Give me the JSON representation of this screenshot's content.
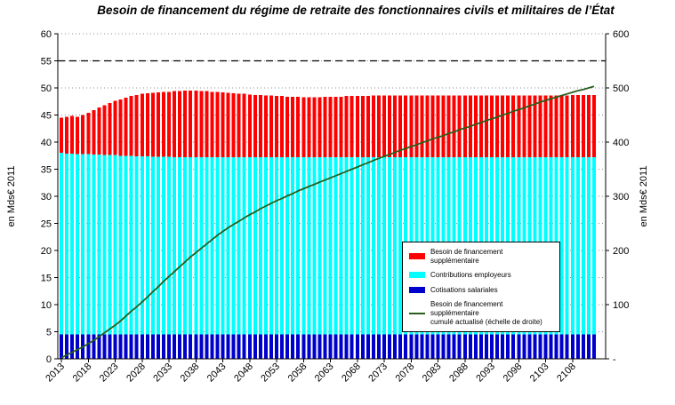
{
  "chart_data": {
    "type": "bar",
    "subtype": "stacked-bars-with-cumulative-line",
    "title": "Besoin de financement du régime de retraite des fonctionnaires civils et militaires de l’État",
    "left_axis_label": "en Mds€ 2011",
    "right_axis_label": "en Mds€ 2011",
    "left_axis": {
      "min": 0,
      "max": 60,
      "step": 5
    },
    "right_axis": {
      "min": 0,
      "max": 600,
      "step": 100,
      "zero_label": "-"
    },
    "grid": "dotted horizontal lines every 5 (left scale)",
    "legend_position": "inside-right",
    "start_year": 2013,
    "x_tick_years": [
      2013,
      2018,
      2023,
      2028,
      2033,
      2038,
      2043,
      2048,
      2053,
      2058,
      2063,
      2068,
      2073,
      2078,
      2083,
      2088,
      2093,
      2098,
      2103,
      2108
    ],
    "reference_line": {
      "value_right": 550,
      "style": "dashed",
      "color": "#000000"
    },
    "series": [
      {
        "name": "Cotisations salariales",
        "type": "bar",
        "axis": "left",
        "color": "#0000CC",
        "values": [
          4.5,
          4.5,
          4.5,
          4.5,
          4.5,
          4.5,
          4.5,
          4.5,
          4.5,
          4.5,
          4.5,
          4.5,
          4.5,
          4.5,
          4.5,
          4.5,
          4.5,
          4.5,
          4.5,
          4.5,
          4.5,
          4.5,
          4.5,
          4.5,
          4.5,
          4.5,
          4.5,
          4.5,
          4.5,
          4.5,
          4.5,
          4.5,
          4.5,
          4.5,
          4.5,
          4.5,
          4.5,
          4.5,
          4.5,
          4.5,
          4.5,
          4.5,
          4.5,
          4.5,
          4.5,
          4.5,
          4.5,
          4.5,
          4.5,
          4.5,
          4.5,
          4.5,
          4.5,
          4.5,
          4.5,
          4.5,
          4.5,
          4.5,
          4.5,
          4.5,
          4.5,
          4.5,
          4.5,
          4.5,
          4.5,
          4.5,
          4.5,
          4.5,
          4.5,
          4.5,
          4.5,
          4.5,
          4.5,
          4.5,
          4.5,
          4.5,
          4.5,
          4.5,
          4.5,
          4.5,
          4.5,
          4.5,
          4.5,
          4.5,
          4.5,
          4.5,
          4.5,
          4.5,
          4.5,
          4.5,
          4.5,
          4.5,
          4.5,
          4.5,
          4.5,
          4.5,
          4.5,
          4.5,
          4.5,
          4.5
        ]
      },
      {
        "name": "Contributions employeurs",
        "type": "bar",
        "axis": "left",
        "color": "#00FFFF",
        "values": [
          33.5,
          33.4,
          33.4,
          33.3,
          33.3,
          33.3,
          33.2,
          33.2,
          33.1,
          33.1,
          33.1,
          33.0,
          33.0,
          33.0,
          32.9,
          32.9,
          32.9,
          32.8,
          32.8,
          32.8,
          32.8,
          32.7,
          32.7,
          32.7,
          32.7,
          32.7,
          32.7,
          32.7,
          32.7,
          32.7,
          32.7,
          32.7,
          32.7,
          32.7,
          32.7,
          32.7,
          32.7,
          32.7,
          32.7,
          32.7,
          32.7,
          32.7,
          32.7,
          32.7,
          32.7,
          32.7,
          32.7,
          32.7,
          32.7,
          32.7,
          32.7,
          32.7,
          32.7,
          32.7,
          32.7,
          32.7,
          32.7,
          32.7,
          32.7,
          32.7,
          32.7,
          32.7,
          32.7,
          32.7,
          32.7,
          32.7,
          32.7,
          32.7,
          32.7,
          32.7,
          32.7,
          32.7,
          32.7,
          32.7,
          32.7,
          32.7,
          32.7,
          32.7,
          32.7,
          32.7,
          32.7,
          32.7,
          32.7,
          32.7,
          32.7,
          32.7,
          32.7,
          32.7,
          32.7,
          32.7,
          32.7,
          32.7,
          32.7,
          32.7,
          32.7,
          32.7,
          32.7,
          32.7,
          32.7,
          32.7
        ]
      },
      {
        "name": "Besoin de financement supplémentaire",
        "type": "bar",
        "axis": "left",
        "color": "#FF0000",
        "values": [
          6.5,
          6.8,
          6.9,
          6.9,
          7.2,
          7.6,
          8.2,
          8.7,
          9.2,
          9.6,
          10.0,
          10.4,
          10.7,
          11.0,
          11.3,
          11.5,
          11.6,
          11.8,
          11.9,
          12.0,
          12.0,
          12.2,
          12.2,
          12.3,
          12.3,
          12.3,
          12.2,
          12.2,
          12.1,
          12.1,
          12.0,
          11.9,
          11.8,
          11.7,
          11.7,
          11.6,
          11.5,
          11.5,
          11.4,
          11.4,
          11.3,
          11.3,
          11.2,
          11.2,
          11.2,
          11.1,
          11.1,
          11.1,
          11.1,
          11.2,
          11.2,
          11.2,
          11.2,
          11.3,
          11.3,
          11.3,
          11.3,
          11.3,
          11.4,
          11.4,
          11.4,
          11.4,
          11.4,
          11.4,
          11.4,
          11.4,
          11.4,
          11.4,
          11.4,
          11.4,
          11.4,
          11.4,
          11.4,
          11.4,
          11.4,
          11.4,
          11.4,
          11.4,
          11.4,
          11.4,
          11.4,
          11.4,
          11.4,
          11.4,
          11.4,
          11.4,
          11.4,
          11.4,
          11.4,
          11.4,
          11.4,
          11.4,
          11.4,
          11.4,
          11.4,
          11.5,
          11.5,
          11.5,
          11.5,
          11.5
        ]
      },
      {
        "name": "Besoin de financement supplémentaire cumulé actualisé (échelle de droite)",
        "type": "line",
        "axis": "right",
        "color": "#275E1D",
        "values": [
          2,
          7,
          12,
          17,
          22,
          28,
          34,
          41,
          48,
          55,
          62,
          70,
          79,
          88,
          96,
          105,
          114,
          124,
          133,
          143,
          152,
          161,
          170,
          179,
          188,
          196,
          204,
          212,
          220,
          228,
          235,
          242,
          248,
          254,
          260,
          266,
          271,
          277,
          282,
          287,
          292,
          296,
          301,
          305,
          310,
          314,
          318,
          322,
          326,
          330,
          334,
          338,
          342,
          346,
          350,
          354,
          358,
          362,
          366,
          370,
          374,
          377,
          381,
          385,
          388,
          392,
          395,
          399,
          402,
          406,
          409,
          412,
          416,
          419,
          423,
          426,
          429,
          433,
          436,
          440,
          443,
          446,
          450,
          453,
          457,
          460,
          463,
          467,
          470,
          474,
          477,
          480,
          483,
          486,
          489,
          492,
          495,
          497,
          500,
          503
        ]
      }
    ],
    "legend": [
      {
        "label": "Besoin de financement supplémentaire",
        "type": "bar",
        "color": "#FF0000",
        "icon": "red-bar-swatch-icon"
      },
      {
        "label": "Contributions employeurs",
        "type": "bar",
        "color": "#00FFFF",
        "icon": "cyan-bar-swatch-icon"
      },
      {
        "label": "Cotisations salariales",
        "type": "bar",
        "color": "#0000CC",
        "icon": "blue-bar-swatch-icon"
      },
      {
        "label": "Besoin de financement supplémentaire\ncumulé actualisé (échelle de droite)",
        "type": "line",
        "color": "#275E1D",
        "icon": "green-line-swatch-icon"
      }
    ]
  }
}
